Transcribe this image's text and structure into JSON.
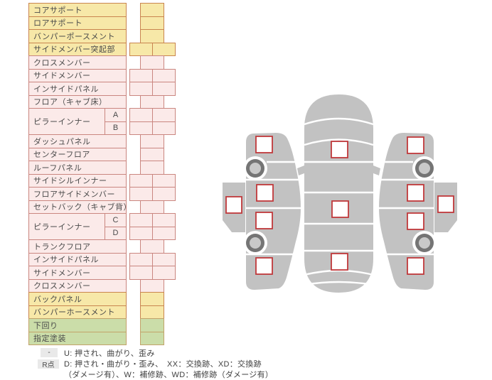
{
  "table": {
    "rows": [
      {
        "label": "コアサポート",
        "color": "yellow",
        "cells": 1
      },
      {
        "label": "ロアサポート",
        "color": "yellow",
        "cells": 1
      },
      {
        "label": "バンパーポースメント",
        "color": "yellow",
        "cells": 1
      },
      {
        "label": "サイドメンバー突起部",
        "color": "yellow",
        "cells": 2
      },
      {
        "label": "クロスメンバー",
        "color": "pink",
        "cells": 1
      },
      {
        "label": "サイドメンバー",
        "color": "pink",
        "cells": 2
      },
      {
        "label": "インサイドパネル",
        "color": "pink",
        "cells": 2
      },
      {
        "label": "フロア（キャブ床）",
        "color": "pink",
        "cells": 1
      },
      {
        "label": "ピラーインナー",
        "color": "pink",
        "cells": 2,
        "sub": "A",
        "groupStart": true
      },
      {
        "label": "",
        "color": "pink",
        "cells": 2,
        "sub": "B"
      },
      {
        "label": "ダッシュパネル",
        "color": "pink",
        "cells": 1
      },
      {
        "label": "センターフロア",
        "color": "pink",
        "cells": 1
      },
      {
        "label": "ルーフパネル",
        "color": "pink",
        "cells": 1
      },
      {
        "label": "サイドシルインナー",
        "color": "pink",
        "cells": 2
      },
      {
        "label": "フロアサイドメンバー",
        "color": "pink",
        "cells": 2
      },
      {
        "label": "セットバック（キャブ背）",
        "color": "pink",
        "cells": 1
      },
      {
        "label": "ピラーインナー",
        "color": "pink",
        "cells": 2,
        "sub": "C",
        "groupStart": true
      },
      {
        "label": "",
        "color": "pink",
        "cells": 2,
        "sub": "D"
      },
      {
        "label": "トランクフロア",
        "color": "pink",
        "cells": 1
      },
      {
        "label": "インサイドパネル",
        "color": "pink",
        "cells": 2
      },
      {
        "label": "サイドメンバー",
        "color": "pink",
        "cells": 2
      },
      {
        "label": "クロスメンバー",
        "color": "pink",
        "cells": 1
      },
      {
        "label": "バックパネル",
        "color": "yellow",
        "cells": 1
      },
      {
        "label": "バンパーホースメント",
        "color": "yellow",
        "cells": 1
      },
      {
        "label": "下回り",
        "color": "green",
        "cells": 1
      },
      {
        "label": "指定塗装",
        "color": "green",
        "cells": 1
      }
    ]
  },
  "legend": {
    "items": [
      {
        "badge": "-",
        "lines": [
          "U: 押され、曲がり、歪み"
        ]
      },
      {
        "badge": "R点",
        "lines": [
          "D: 押され・曲がり・歪み、　XX：交換跡、XD：交換跡",
          "（ダメージ有）、W：補修跡、WD：補修跡（ダメージ有）"
        ]
      }
    ]
  },
  "diagram": {
    "left_side_checkpoints": 5,
    "top_view_checkpoints": 3,
    "right_side_checkpoints": 5,
    "wheels_per_side_view": 2
  },
  "colors": {
    "row_yellow_bg": "#F7E8A8",
    "row_yellow_border": "#C9854F",
    "row_pink_bg": "#FBEAE9",
    "row_pink_border": "#CA8680",
    "row_green_bg": "#CBDDA9",
    "row_green_border": "#C2A36A",
    "checkpoint_border": "#C0383B",
    "car_body": "#C2C2C2",
    "wheel_ring": "#757575",
    "wheel_hub": "#C9C9C9",
    "legend_badge_bg": "#E9E9E9",
    "text": "#4A4A4A"
  }
}
